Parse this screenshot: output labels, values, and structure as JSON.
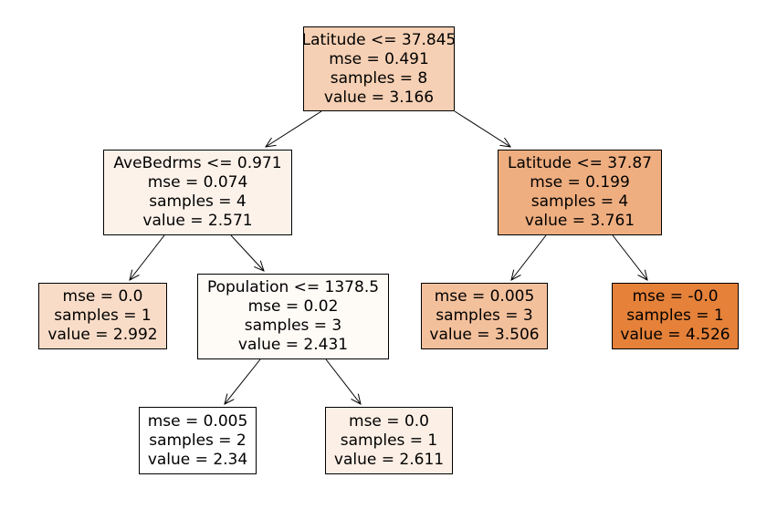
{
  "nodes": [
    {
      "id": "n0",
      "split": "Latitude <= 37.845",
      "mse": "mse = 0.491",
      "samples": "samples = 8",
      "value": "value = 3.166",
      "fill": "#f6d0b4"
    },
    {
      "id": "n1",
      "split": "AveBedrms <= 0.971",
      "mse": "mse = 0.074",
      "samples": "samples = 4",
      "value": "value = 2.571",
      "fill": "#fdf2ea"
    },
    {
      "id": "n2",
      "split": "",
      "mse": "mse = 0.0",
      "samples": "samples = 1",
      "value": "value = 2.992",
      "fill": "#f9dcc8"
    },
    {
      "id": "n3",
      "split": "Population <= 1378.5",
      "mse": "mse = 0.02",
      "samples": "samples = 3",
      "value": "value = 2.431",
      "fill": "#fefaf6"
    },
    {
      "id": "n4",
      "split": "",
      "mse": "mse = 0.005",
      "samples": "samples = 2",
      "value": "value = 2.34",
      "fill": "#ffffff"
    },
    {
      "id": "n5",
      "split": "",
      "mse": "mse = 0.0",
      "samples": "samples = 1",
      "value": "value = 2.611",
      "fill": "#fcefe5"
    },
    {
      "id": "n6",
      "split": "Latitude <= 37.87",
      "mse": "mse = 0.199",
      "samples": "samples = 4",
      "value": "value = 3.761",
      "fill": "#efae80"
    },
    {
      "id": "n7",
      "split": "",
      "mse": "mse = 0.005",
      "samples": "samples = 3",
      "value": "value = 3.506",
      "fill": "#f3c09c"
    },
    {
      "id": "n8",
      "split": "",
      "mse": "mse = -0.0",
      "samples": "samples = 1",
      "value": "value = 4.526",
      "fill": "#e58139"
    }
  ],
  "edges": [
    [
      "n0",
      "n1"
    ],
    [
      "n0",
      "n6"
    ],
    [
      "n1",
      "n2"
    ],
    [
      "n1",
      "n3"
    ],
    [
      "n3",
      "n4"
    ],
    [
      "n3",
      "n5"
    ],
    [
      "n6",
      "n7"
    ],
    [
      "n6",
      "n8"
    ]
  ]
}
